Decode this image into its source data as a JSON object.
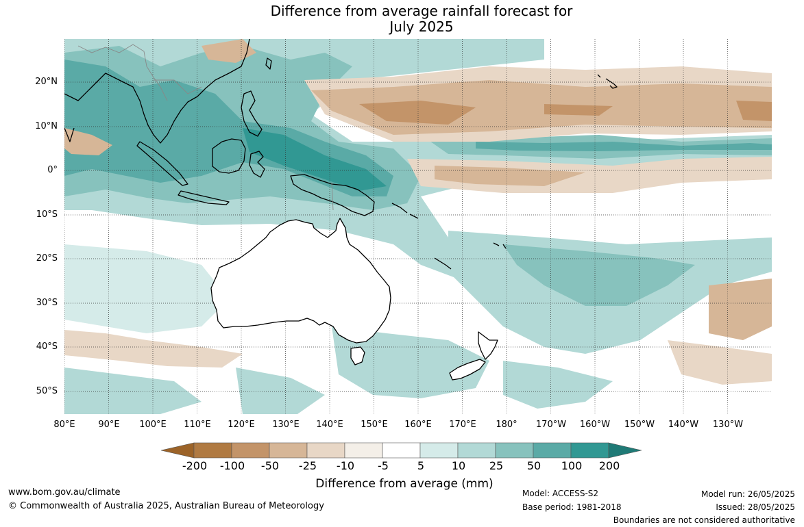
{
  "title": {
    "line1": "Difference from average rainfall forecast for",
    "line2": "July 2025"
  },
  "map": {
    "projection": "equirectangular",
    "lon_range_labels": [
      "80°E",
      "90°E",
      "100°E",
      "110°E",
      "120°E",
      "130°E",
      "140°E",
      "150°E",
      "160°E",
      "170°E",
      "180°",
      "170°W",
      "160°W",
      "150°W",
      "140°W",
      "130°W"
    ],
    "lat_labels": [
      "20°N",
      "10°N",
      "0°",
      "10°S",
      "20°S",
      "30°S",
      "40°S",
      "50°S"
    ],
    "gridlines": "dotted",
    "regions": [
      {
        "name": "north-pacific-dry-band",
        "category": "-50 to -25",
        "color": "#d6b697"
      },
      {
        "name": "north-pacific-dry-core",
        "category": "-100 to -50",
        "color": "#c39469"
      },
      {
        "name": "equatorial-pacific-wet-band",
        "category": "25 to 50",
        "color": "#87c2bd"
      },
      {
        "name": "maritime-continent-wet",
        "category": "50 to 100",
        "color": "#5aaaa6"
      },
      {
        "name": "coral-sea-wet",
        "category": "10 to 25",
        "color": "#b2d9d6"
      },
      {
        "name": "southern-ocean-dry",
        "category": "-25 to -10",
        "color": "#e6d2bf"
      }
    ]
  },
  "colorbar": {
    "tick_labels": [
      "-200",
      "-100",
      "-50",
      "-25",
      "-10",
      "-5",
      "5",
      "10",
      "25",
      "50",
      "100",
      "200"
    ],
    "colors": [
      "#9c6328",
      "#b07a42",
      "#c39469",
      "#d6b697",
      "#e8d7c6",
      "#f4efe8",
      "#ffffff",
      "#d5ebe9",
      "#b2d9d6",
      "#87c2bd",
      "#5aaaa6",
      "#319893",
      "#1f7a76"
    ],
    "label": "Difference from average (mm)"
  },
  "footer": {
    "website": "www.bom.gov.au/climate",
    "copyright": "© Commonwealth of Australia 2025, Australian Bureau of Meteorology",
    "model": "Model: ACCESS-S2",
    "base_period": "Base period: 1981-2018",
    "model_run": "Model run: 26/05/2025",
    "issued": "Issued: 28/05/2025",
    "boundaries_note": "Boundaries are not considered authoritative"
  }
}
